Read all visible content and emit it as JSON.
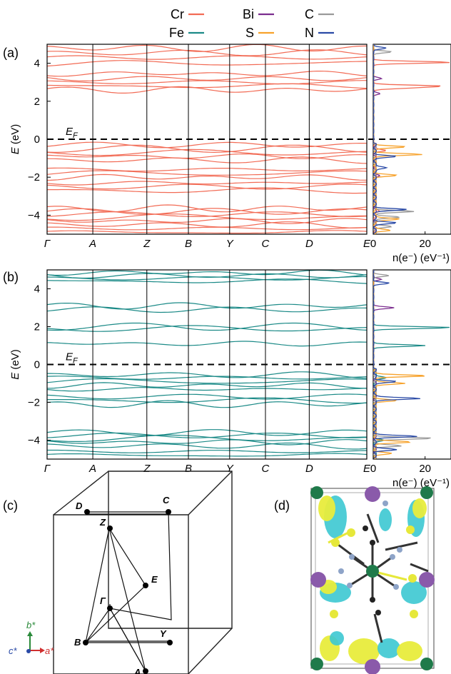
{
  "legend": {
    "items": [
      {
        "label": "Cr",
        "color": "#f26b55"
      },
      {
        "label": "Bi",
        "color": "#7b2d8e"
      },
      {
        "label": "C",
        "color": "#999999"
      },
      {
        "label": "Fe",
        "color": "#1b8a87"
      },
      {
        "label": "S",
        "color": "#f7a22b"
      },
      {
        "label": "N",
        "color": "#2a4aa6"
      }
    ]
  },
  "chart_data": [
    {
      "type": "line",
      "panel": "(a)",
      "ylabel": "E (eV)",
      "ylim": [
        -5,
        5
      ],
      "yticks": [
        -4,
        -2,
        0,
        2,
        4
      ],
      "ytick_labels": [
        "−4",
        "−2",
        "0",
        "2",
        "4"
      ],
      "fermi_label": "E_F",
      "fermi_level": 0,
      "kpoints": [
        "Γ",
        "A",
        "Z",
        "B",
        "Y",
        "C",
        "D",
        "E"
      ],
      "band_color": "#f26b55",
      "band_energies": [
        -4.9,
        -4.7,
        -4.5,
        -4.3,
        -4.1,
        -3.95,
        -3.8,
        -3.65,
        -2.7,
        -2.5,
        -2.3,
        -2.0,
        -1.8,
        -1.6,
        -1.1,
        -0.9,
        -0.7,
        -0.5,
        -0.3,
        2.6,
        2.8,
        3.0,
        3.2,
        3.45,
        4.0,
        4.3,
        4.55,
        4.8
      ],
      "dos": {
        "xlabel": "n(e⁻) (eV⁻¹)",
        "xticks": [
          0,
          20
        ],
        "xlim": [
          0,
          30
        ],
        "series": [
          {
            "name": "Cr",
            "color": "#f26b55",
            "peaks": [
              [
                4.05,
                30
              ],
              [
                2.8,
                25
              ],
              [
                2.7,
                12
              ],
              [
                -0.6,
                4
              ],
              [
                -3.8,
                2
              ]
            ]
          },
          {
            "name": "Bi",
            "color": "#7b2d8e",
            "peaks": [
              [
                3.2,
                3
              ],
              [
                2.4,
                2.5
              ],
              [
                -1.9,
                2
              ]
            ]
          },
          {
            "name": "C",
            "color": "#999999",
            "peaks": [
              [
                4.6,
                7
              ],
              [
                -3.8,
                15
              ],
              [
                -4.1,
                10
              ],
              [
                -4.6,
                6
              ]
            ]
          },
          {
            "name": "S",
            "color": "#f7a22b",
            "peaks": [
              [
                -0.8,
                18
              ],
              [
                -0.4,
                12
              ],
              [
                -1.9,
                8
              ],
              [
                -4.2,
                10
              ],
              [
                -4.8,
                6
              ]
            ]
          },
          {
            "name": "N",
            "color": "#2a4aa6",
            "peaks": [
              [
                4.8,
                5
              ],
              [
                -0.9,
                8
              ],
              [
                -1.5,
                5
              ],
              [
                -3.7,
                12
              ],
              [
                -4.4,
                8
              ]
            ]
          }
        ]
      }
    },
    {
      "type": "line",
      "panel": "(b)",
      "ylabel": "E (eV)",
      "ylim": [
        -5,
        5
      ],
      "yticks": [
        -4,
        -2,
        0,
        2,
        4
      ],
      "ytick_labels": [
        "−4",
        "−2",
        "0",
        "2",
        "4"
      ],
      "fermi_label": "E_F",
      "fermi_level": 0,
      "kpoints": [
        "Γ",
        "A",
        "Z",
        "B",
        "Y",
        "C",
        "D",
        "E"
      ],
      "band_color": "#1b8a87",
      "band_energies": [
        -4.8,
        -4.6,
        -4.3,
        -4.1,
        -3.9,
        -3.75,
        -3.6,
        -2.1,
        -1.9,
        -1.7,
        -1.3,
        -1.1,
        -0.9,
        -0.7,
        -0.55,
        1.1,
        1.9,
        2.0,
        2.9,
        3.1,
        4.4,
        4.55,
        4.7,
        4.85
      ],
      "dos": {
        "xlabel": "n(e⁻) (eV⁻¹)",
        "xticks": [
          0,
          20
        ],
        "xlim": [
          0,
          30
        ],
        "series": [
          {
            "name": "Fe",
            "color": "#1b8a87",
            "peaks": [
              [
                1.95,
                30
              ],
              [
                1.0,
                20
              ],
              [
                -0.7,
                5
              ],
              [
                -4.0,
                3
              ]
            ]
          },
          {
            "name": "Bi",
            "color": "#7b2d8e",
            "peaks": [
              [
                3.0,
                8
              ],
              [
                4.5,
                3
              ]
            ]
          },
          {
            "name": "C",
            "color": "#999999",
            "peaks": [
              [
                4.7,
                6
              ],
              [
                -3.9,
                22
              ],
              [
                -4.3,
                10
              ]
            ]
          },
          {
            "name": "S",
            "color": "#f7a22b",
            "peaks": [
              [
                -0.6,
                20
              ],
              [
                -1.0,
                12
              ],
              [
                -1.9,
                8
              ],
              [
                -4.1,
                14
              ],
              [
                -4.7,
                6
              ]
            ]
          },
          {
            "name": "N",
            "color": "#2a4aa6",
            "peaks": [
              [
                4.3,
                6
              ],
              [
                -1.8,
                18
              ],
              [
                -0.9,
                8
              ],
              [
                -3.8,
                16
              ],
              [
                -4.5,
                8
              ]
            ]
          }
        ]
      }
    }
  ],
  "panels": {
    "a": "(a)",
    "b": "(b)",
    "c": "(c)",
    "d": "(d)"
  },
  "brillouin": {
    "points": [
      "Z",
      "C",
      "D",
      "E",
      "Γ",
      "B",
      "Y",
      "A"
    ],
    "axes": {
      "b": "b*",
      "c": "c*",
      "a": "a*"
    },
    "axis_colors": {
      "b": "#2a8a3a",
      "c": "#2a4aa6",
      "a": "#d03030"
    }
  },
  "structure": {
    "iso_colors": {
      "cyan": "#3cc8d2",
      "yellow": "#e8ec3c"
    },
    "atom_colors": {
      "green": "#1f7a4a",
      "purple": "#8a5aaa",
      "gray": "#8ea4c8",
      "black": "#222222",
      "yellow": "#e6e83a"
    }
  }
}
